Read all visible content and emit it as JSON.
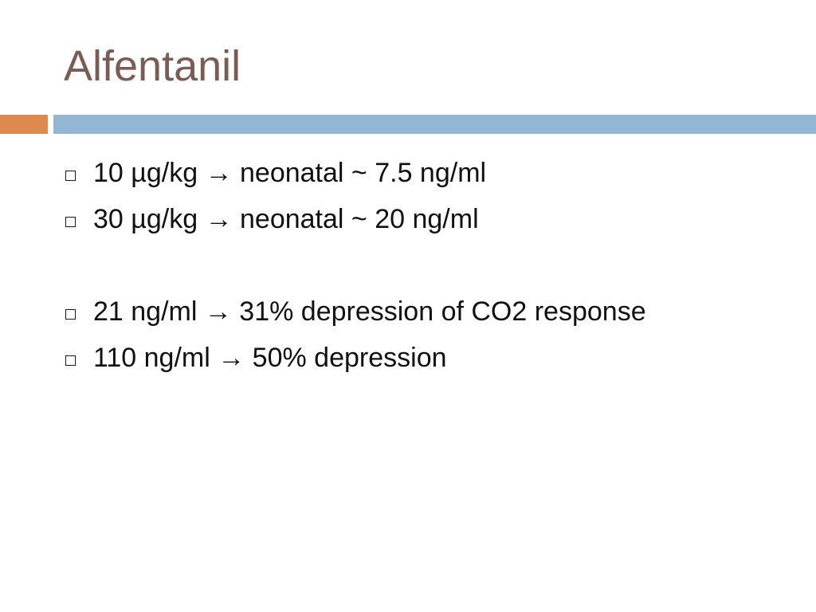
{
  "slide": {
    "title": "Alfentanil",
    "colors": {
      "title": "#7a5c52",
      "accent_left": "#de8a4e",
      "accent_bar": "#93b6d4"
    },
    "bullet_icon": "square-outline-icon",
    "bullets_group_1": [
      "10 µg/kg → neonatal ~ 7.5 ng/ml",
      "30 µg/kg → neonatal ~ 20 ng/ml"
    ],
    "bullets_group_2": [
      "21 ng/ml → 31% depression of CO2 response",
      "110 ng/ml → 50% depression"
    ]
  }
}
